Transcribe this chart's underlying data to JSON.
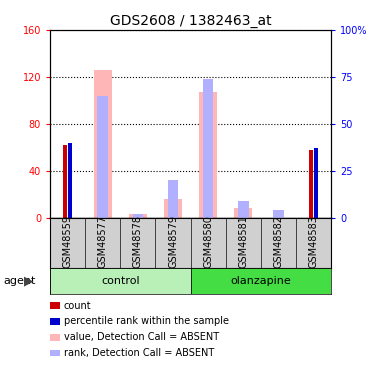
{
  "title": "GDS2608 / 1382463_at",
  "samples": [
    "GSM48559",
    "GSM48577",
    "GSM48578",
    "GSM48579",
    "GSM48580",
    "GSM48581",
    "GSM48582",
    "GSM48583"
  ],
  "count_values": [
    62,
    0,
    0,
    0,
    0,
    0,
    0,
    58
  ],
  "rank_values": [
    40,
    0,
    0,
    0,
    0,
    0,
    0,
    37
  ],
  "absent_value_values": [
    0,
    126,
    3,
    16,
    107,
    8,
    0,
    0
  ],
  "absent_rank_values": [
    0,
    65,
    2,
    20,
    74,
    9,
    4,
    0
  ],
  "ylim_left": [
    0,
    160
  ],
  "ylim_right": [
    0,
    100
  ],
  "yticks_left": [
    0,
    40,
    80,
    120,
    160
  ],
  "ytick_labels_left": [
    "0",
    "40",
    "80",
    "120",
    "160"
  ],
  "yticks_right": [
    0,
    25,
    50,
    75,
    100
  ],
  "ytick_labels_right": [
    "0",
    "25",
    "50",
    "75",
    "100%"
  ],
  "count_color": "#cc0000",
  "rank_color": "#0000cc",
  "absent_value_color": "#ffb6b6",
  "absent_rank_color": "#b0b0ff",
  "control_color": "#b8f0b8",
  "olanzapine_color": "#44dd44",
  "legend_items": [
    {
      "label": "count",
      "color": "#cc0000"
    },
    {
      "label": "percentile rank within the sample",
      "color": "#0000cc"
    },
    {
      "label": "value, Detection Call = ABSENT",
      "color": "#ffb6b6"
    },
    {
      "label": "rank, Detection Call = ABSENT",
      "color": "#b0b0ff"
    }
  ],
  "agent_label": "agent",
  "title_fontsize": 10,
  "tick_fontsize": 7,
  "label_fontsize": 8,
  "legend_fontsize": 7
}
